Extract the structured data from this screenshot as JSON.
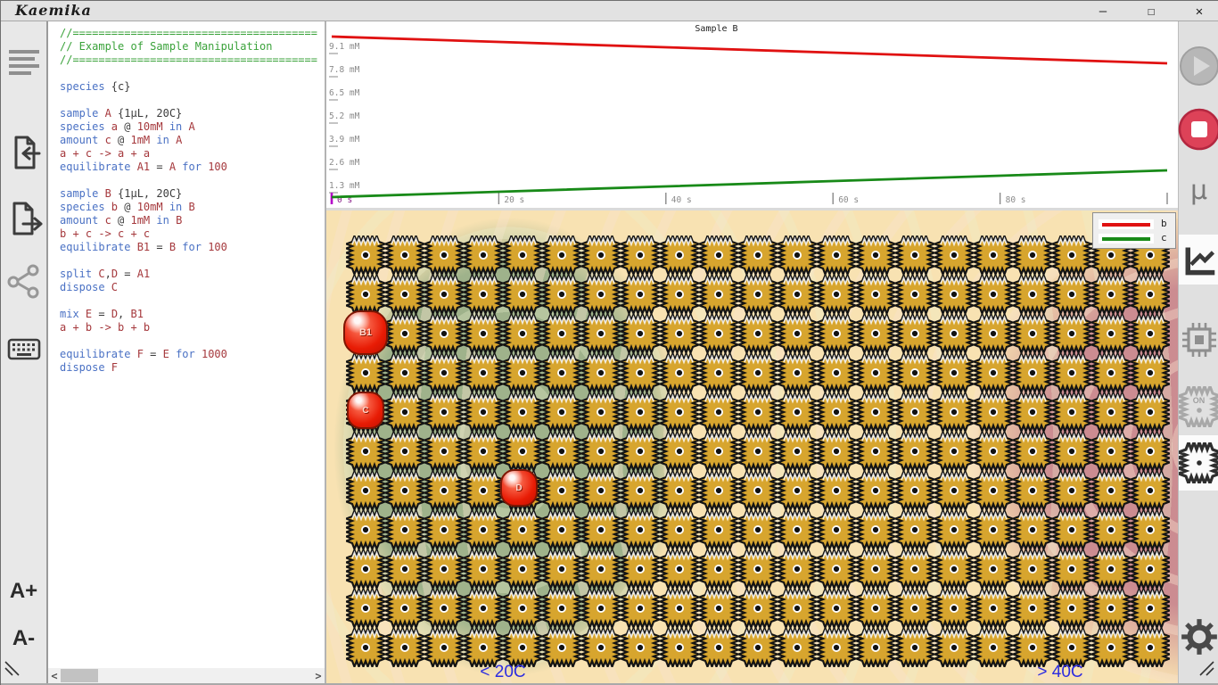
{
  "window": {
    "title": "Kaemika",
    "minimize": "—",
    "maximize": "☐",
    "close": "✕"
  },
  "left_sidebar": {
    "font_increase": "A+",
    "font_decrease": "A-"
  },
  "editor": {
    "scroll_left": "<",
    "scroll_right": ">",
    "lines": [
      [
        [
          "c",
          "//======================================"
        ]
      ],
      [
        [
          "c",
          "// Example of Sample Manipulation"
        ]
      ],
      [
        [
          "c",
          "//======================================"
        ]
      ],
      [],
      [
        [
          "k",
          "species "
        ],
        [
          "p",
          "{c}"
        ]
      ],
      [],
      [
        [
          "k",
          "sample "
        ],
        [
          "i",
          "A "
        ],
        [
          "p",
          "{1µL, 20C}"
        ]
      ],
      [
        [
          "k",
          "species "
        ],
        [
          "i",
          "a "
        ],
        [
          "p",
          "@ "
        ],
        [
          "i",
          "10mM "
        ],
        [
          "k",
          "in "
        ],
        [
          "i",
          "A"
        ]
      ],
      [
        [
          "k",
          "amount "
        ],
        [
          "i",
          "c "
        ],
        [
          "p",
          "@ "
        ],
        [
          "i",
          "1mM "
        ],
        [
          "k",
          "in "
        ],
        [
          "i",
          "A"
        ]
      ],
      [
        [
          "i",
          "a + c -> a + a"
        ]
      ],
      [
        [
          "k",
          "equilibrate "
        ],
        [
          "i",
          "A1 "
        ],
        [
          "p",
          "= "
        ],
        [
          "i",
          "A "
        ],
        [
          "k",
          "for "
        ],
        [
          "i",
          "100"
        ]
      ],
      [],
      [
        [
          "k",
          "sample "
        ],
        [
          "i",
          "B "
        ],
        [
          "p",
          "{1µL, 20C}"
        ]
      ],
      [
        [
          "k",
          "species "
        ],
        [
          "i",
          "b "
        ],
        [
          "p",
          "@ "
        ],
        [
          "i",
          "10mM "
        ],
        [
          "k",
          "in "
        ],
        [
          "i",
          "B"
        ]
      ],
      [
        [
          "k",
          "amount "
        ],
        [
          "i",
          "c "
        ],
        [
          "p",
          "@ "
        ],
        [
          "i",
          "1mM "
        ],
        [
          "k",
          "in "
        ],
        [
          "i",
          "B"
        ]
      ],
      [
        [
          "i",
          "b + c -> c + c"
        ]
      ],
      [
        [
          "k",
          "equilibrate "
        ],
        [
          "i",
          "B1 "
        ],
        [
          "p",
          "= "
        ],
        [
          "i",
          "B "
        ],
        [
          "k",
          "for "
        ],
        [
          "i",
          "100"
        ]
      ],
      [],
      [
        [
          "k",
          "split "
        ],
        [
          "i",
          "C"
        ],
        [
          "p",
          ","
        ],
        [
          "i",
          "D "
        ],
        [
          "p",
          "= "
        ],
        [
          "i",
          "A1"
        ]
      ],
      [
        [
          "k",
          "dispose "
        ],
        [
          "i",
          "C"
        ]
      ],
      [],
      [
        [
          "k",
          "mix "
        ],
        [
          "i",
          "E "
        ],
        [
          "p",
          "= "
        ],
        [
          "i",
          "D"
        ],
        [
          "p",
          ", "
        ],
        [
          "i",
          "B1"
        ]
      ],
      [
        [
          "i",
          "a + b -> b + b"
        ]
      ],
      [],
      [
        [
          "k",
          "equilibrate "
        ],
        [
          "i",
          "F "
        ],
        [
          "p",
          "= "
        ],
        [
          "i",
          "E "
        ],
        [
          "k",
          "for "
        ],
        [
          "i",
          "1000"
        ]
      ],
      [
        [
          "k",
          "dispose "
        ],
        [
          "i",
          "F"
        ]
      ]
    ]
  },
  "chart_data": {
    "type": "line",
    "title": "Sample B",
    "x_unit": "s",
    "y_unit": "mM",
    "x_ticks": [
      0,
      20,
      40,
      60,
      80
    ],
    "x_max": 100,
    "y_ticks": [
      1.3,
      2.6,
      3.9,
      5.2,
      6.5,
      7.8,
      9.1
    ],
    "y_max": 10.4,
    "grid": false,
    "legend_position": "top-right-overlay",
    "series": [
      {
        "name": "b",
        "color": "#e01111",
        "x": [
          0,
          20,
          40,
          60,
          80,
          100
        ],
        "values": [
          10.0,
          9.7,
          9.4,
          9.1,
          8.8,
          8.5
        ]
      },
      {
        "name": "c",
        "color": "#188a18",
        "x": [
          0,
          20,
          40,
          60,
          80,
          100
        ],
        "values": [
          1.0,
          1.3,
          1.6,
          1.9,
          2.2,
          2.5
        ]
      }
    ]
  },
  "spatial": {
    "cell_color": "#d7a52e",
    "blobs": [
      {
        "label": "B1"
      },
      {
        "label": "C"
      },
      {
        "label": "D"
      }
    ],
    "temp_left": "< 20C",
    "temp_right": "> 40C"
  },
  "right_sidebar": {
    "mu": "μ",
    "cell_on_label": "ON"
  }
}
